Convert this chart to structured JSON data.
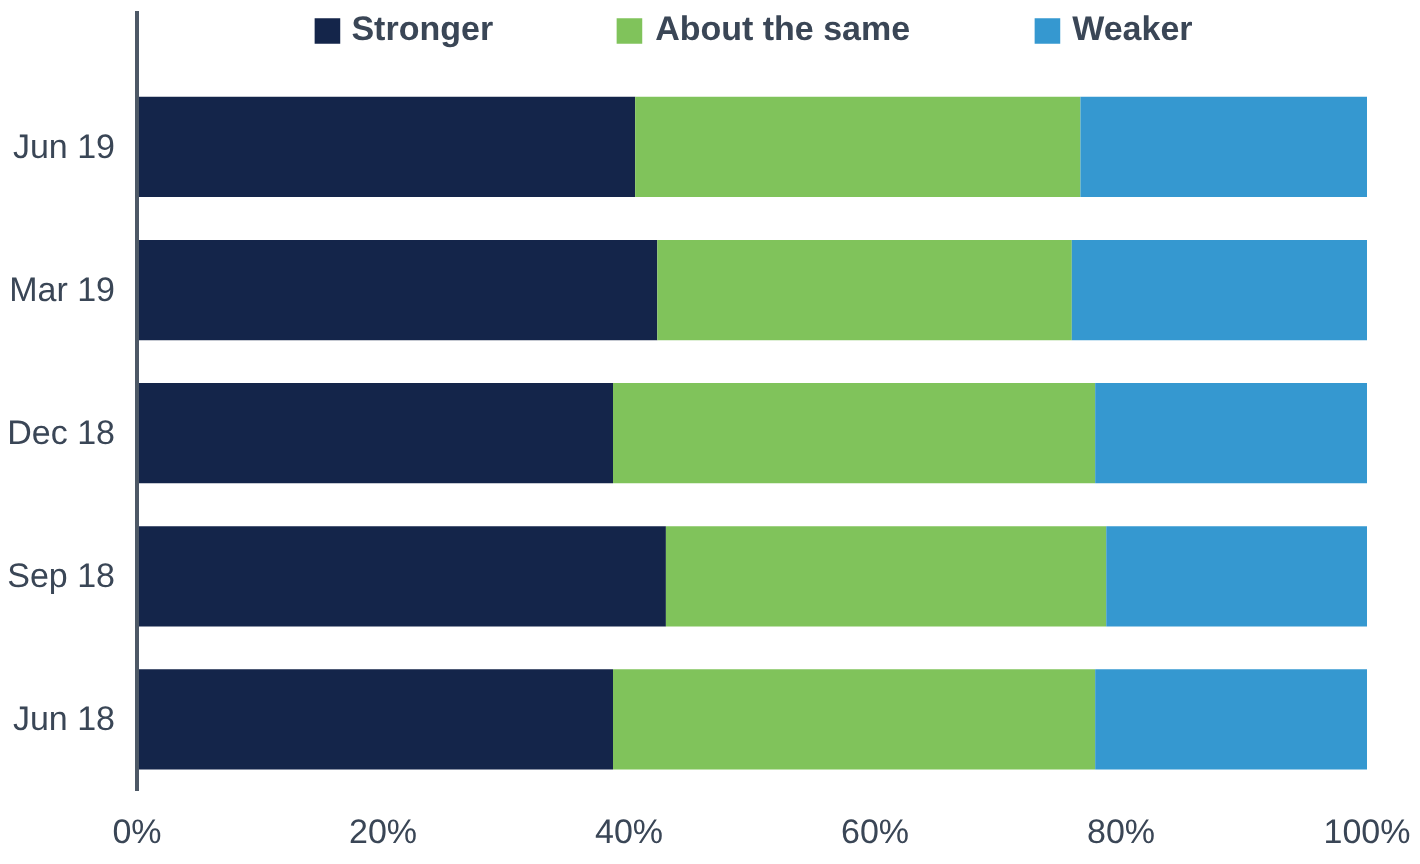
{
  "chart_data": {
    "type": "bar",
    "orientation": "horizontal",
    "stacked": true,
    "categories": [
      "Jun 19",
      "Mar 19",
      "Dec 18",
      "Sep 18",
      "Jun 18"
    ],
    "series": [
      {
        "name": "Stronger",
        "color": "#14254a",
        "values": [
          40.5,
          42.3,
          38.7,
          43,
          38.7
        ]
      },
      {
        "name": "About the same",
        "color": "#80c35b",
        "values": [
          36.2,
          33.7,
          39.2,
          35.8,
          39.2
        ]
      },
      {
        "name": "Weaker",
        "color": "#3598d0",
        "values": [
          23.3,
          24,
          22.1,
          21.2,
          22.1
        ]
      }
    ],
    "xlim": [
      0,
      100
    ],
    "xticks": [
      {
        "value": 0,
        "label": "0%"
      },
      {
        "value": 20,
        "label": "20%"
      },
      {
        "value": 40,
        "label": "40%"
      },
      {
        "value": 60,
        "label": "60%"
      },
      {
        "value": 80,
        "label": "80%"
      },
      {
        "value": 100,
        "label": "100%"
      }
    ],
    "grid": false,
    "legend": "top"
  }
}
